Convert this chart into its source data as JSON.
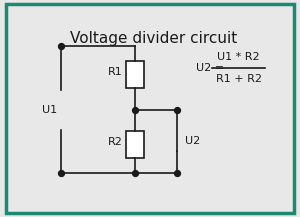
{
  "title": "Voltage divider circuit",
  "title_fontsize": 11,
  "background_color": "#e8e8e8",
  "border_color": "#1a8a70",
  "line_color": "#1a1a1a",
  "resistor_color": "#ffffff",
  "text_color": "#1a1a1a",
  "formula_u2": "U2 =",
  "formula_numerator": "U1 * R2",
  "formula_denominator": "R1 + R2",
  "label_U1": "U1",
  "label_U2": "U2",
  "label_R1": "R1",
  "label_R2": "R2"
}
